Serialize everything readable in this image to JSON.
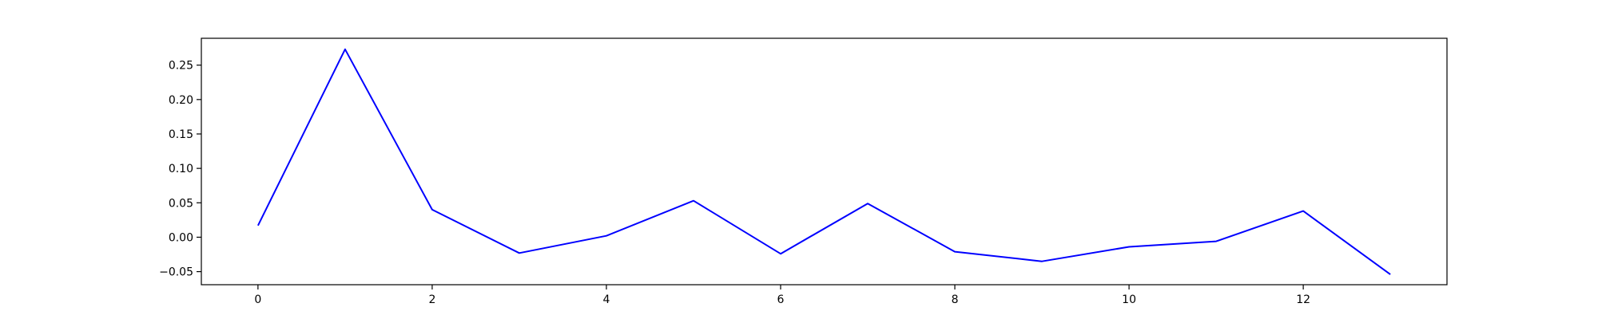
{
  "chart_data": {
    "type": "line",
    "title": "",
    "xlabel": "",
    "ylabel": "",
    "xlim": [
      -0.65,
      13.65
    ],
    "ylim": [
      -0.069,
      0.289
    ],
    "grid": false,
    "xticks": [
      0,
      2,
      4,
      6,
      8,
      10,
      12
    ],
    "xtick_labels": [
      "0",
      "2",
      "4",
      "6",
      "8",
      "10",
      "12"
    ],
    "yticks": [
      -0.05,
      0.0,
      0.05,
      0.1,
      0.15,
      0.2,
      0.25
    ],
    "ytick_labels": [
      "−0.05",
      "0.00",
      "0.05",
      "0.10",
      "0.15",
      "0.20",
      "0.25"
    ],
    "series": [
      {
        "color": "#0000ff",
        "x": [
          0,
          1,
          2,
          3,
          4,
          5,
          6,
          7,
          8,
          9,
          10,
          11,
          12,
          13
        ],
        "values": [
          0.017,
          0.273,
          0.04,
          -0.023,
          0.002,
          0.053,
          -0.024,
          0.049,
          -0.021,
          -0.035,
          -0.014,
          -0.006,
          0.038,
          -0.054
        ]
      }
    ]
  }
}
